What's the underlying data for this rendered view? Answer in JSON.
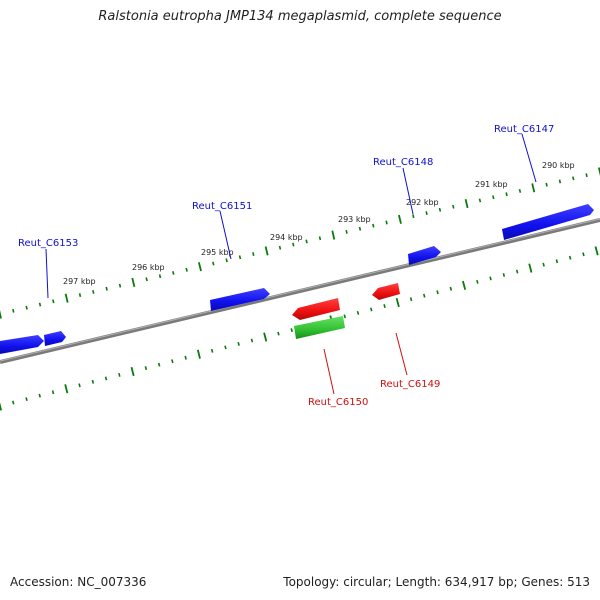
{
  "header": {
    "title": "Ralstonia eutropha JMP134 megaplasmid, complete sequence"
  },
  "footer": {
    "accession": "Accession: NC_007336",
    "summary": "Topology: circular; Length: 634,917 bp; Genes: 513"
  },
  "colors": {
    "forward_gene": "#1010ee",
    "reverse_gene": "#ee1010",
    "other_gene": "#22bb22",
    "backbone": "#888888",
    "ticks": "#0a7a0a"
  },
  "scale_labels": [
    "290 kbp",
    "291 kbp",
    "292 kbp",
    "293 kbp",
    "294 kbp",
    "295 kbp",
    "296 kbp",
    "297 kbp"
  ],
  "gene_labels": [
    "Reut_C6147",
    "Reut_C6148",
    "Reut_C6151",
    "Reut_C6153",
    "Reut_C6149",
    "Reut_C6150"
  ]
}
